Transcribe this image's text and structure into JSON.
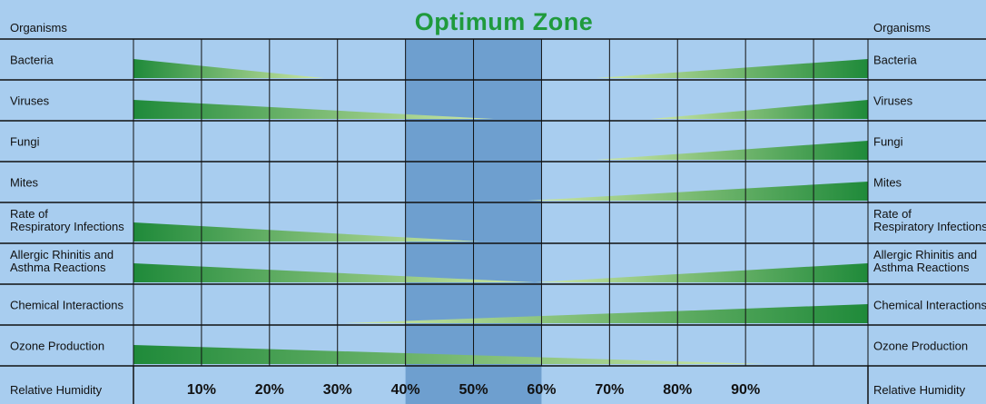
{
  "chart_data": {
    "type": "area",
    "title": "Optimum Zone",
    "left_header": "Organisms",
    "right_header": "Organisms",
    "bottom_label": "Relative Humidity",
    "x_ticks": [
      "10%",
      "20%",
      "30%",
      "40%",
      "50%",
      "60%",
      "70%",
      "80%",
      "90%"
    ],
    "xlim": [
      0,
      108
    ],
    "optimum_range": [
      40,
      60
    ],
    "colors": {
      "background": "#a8cdef",
      "optimum_zone": "#6e9fcf",
      "wedge_dark": "#1f8a3a",
      "wedge_light": "#cfe8a8",
      "title": "#1f9a3c",
      "grid": "#111111"
    },
    "rows": [
      {
        "lines": [
          "Bacteria"
        ],
        "left_wedge": [
          0,
          28
        ],
        "right_wedge": [
          68,
          108
        ]
      },
      {
        "lines": [
          "Viruses"
        ],
        "left_wedge": [
          0,
          53
        ],
        "right_wedge": [
          76,
          108
        ]
      },
      {
        "lines": [
          "Fungi"
        ],
        "left_wedge": null,
        "right_wedge": [
          68,
          108
        ]
      },
      {
        "lines": [
          "Mites"
        ],
        "left_wedge": null,
        "right_wedge": [
          58,
          108
        ]
      },
      {
        "lines": [
          "Rate of",
          "Respiratory Infections"
        ],
        "left_wedge": [
          0,
          51
        ],
        "right_wedge": null
      },
      {
        "lines": [
          "Allergic Rhinitis and",
          "Asthma Reactions"
        ],
        "left_wedge": [
          0,
          59
        ],
        "right_wedge": [
          59,
          108
        ]
      },
      {
        "lines": [
          "Chemical Interactions"
        ],
        "left_wedge": null,
        "right_wedge": [
          31,
          108
        ]
      },
      {
        "lines": [
          "Ozone Production"
        ],
        "left_wedge": [
          0,
          93
        ],
        "right_wedge": null
      }
    ]
  }
}
